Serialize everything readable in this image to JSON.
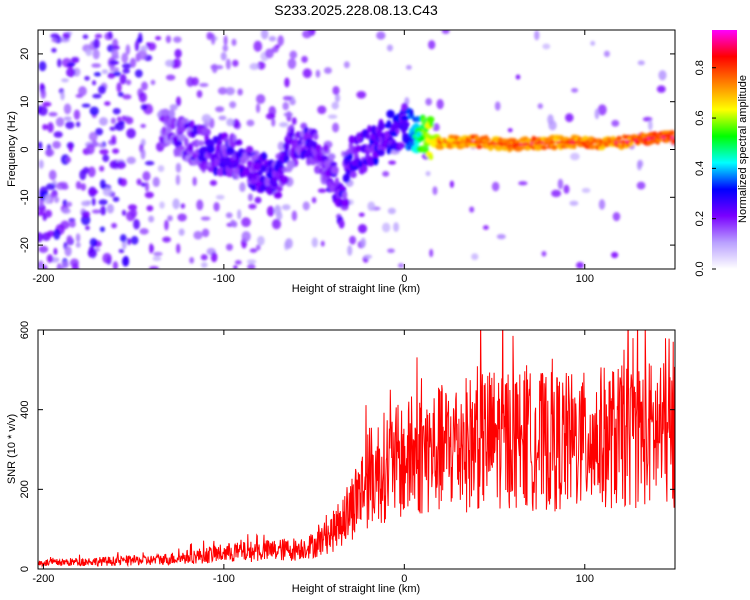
{
  "title": "S233.2025.228.08.13.C43",
  "chart_data": [
    {
      "type": "heatmap",
      "xlabel": "Height of straight line (km)",
      "ylabel": "Frequency (Hz)",
      "xlim": [
        -203,
        150
      ],
      "ylim": [
        -25,
        25
      ],
      "x_ticks": [
        -200,
        -100,
        0,
        100
      ],
      "y_ticks": [
        -20,
        -10,
        0,
        10,
        20
      ],
      "colorbar": {
        "label": "Normalized spectral amplitude",
        "range": [
          0.0,
          0.95
        ],
        "ticks": [
          0.0,
          0.2,
          0.4,
          0.6,
          0.8
        ],
        "colors": [
          "#ffffff",
          "#b9a0ff",
          "#7a00ff",
          "#0000ff",
          "#00ffff",
          "#00ff00",
          "#ffff00",
          "#ff8000",
          "#ff0000",
          "#ff00ff"
        ]
      },
      "ridge": {
        "x": [
          -130,
          -110,
          -90,
          -80,
          -70,
          -60,
          -50,
          -40,
          -35,
          -30,
          -20,
          -10,
          0,
          5,
          10,
          20,
          40,
          60,
          80,
          100,
          120,
          140,
          150
        ],
        "freq": [
          4,
          0,
          -2,
          -5,
          -6,
          3,
          0,
          -5,
          -13,
          -2,
          0,
          3,
          5,
          4,
          3,
          1.5,
          1.5,
          1,
          1.5,
          1.5,
          1.5,
          2.5,
          2.5
        ],
        "amplitude": [
          0.25,
          0.3,
          0.3,
          0.3,
          0.3,
          0.28,
          0.3,
          0.28,
          0.3,
          0.32,
          0.32,
          0.34,
          0.35,
          0.45,
          0.6,
          0.8,
          0.85,
          0.85,
          0.85,
          0.85,
          0.85,
          0.9,
          0.9
        ]
      }
    },
    {
      "type": "line",
      "xlabel": "Height of straight line (km)",
      "ylabel": "SNR (10 * v/v)",
      "xlim": [
        -203,
        150
      ],
      "ylim": [
        0,
        600
      ],
      "x_ticks": [
        -200,
        -100,
        0,
        100
      ],
      "y_ticks": [
        0,
        200,
        400,
        600
      ],
      "color": "#ff0000",
      "series": [
        {
          "x": [
            -200,
            -180,
            -160,
            -140,
            -120,
            -100,
            -80,
            -60,
            -50,
            -40,
            -30,
            -20,
            -10,
            0,
            10,
            20,
            30,
            40,
            50,
            60,
            70,
            80,
            90,
            100,
            110,
            120,
            130,
            140,
            150
          ],
          "values": [
            15,
            18,
            20,
            22,
            30,
            40,
            45,
            50,
            60,
            90,
            150,
            230,
            260,
            270,
            290,
            300,
            310,
            320,
            330,
            330,
            320,
            320,
            320,
            320,
            330,
            330,
            340,
            340,
            330
          ]
        }
      ]
    }
  ]
}
